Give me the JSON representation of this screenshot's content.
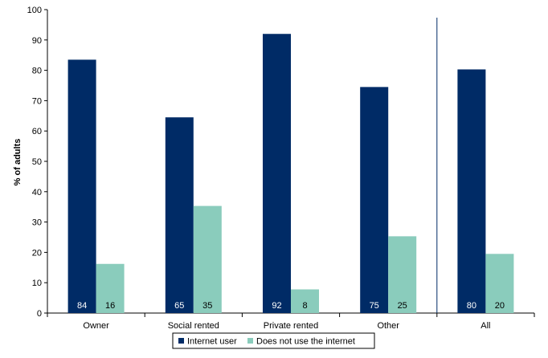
{
  "chart_data": {
    "type": "bar",
    "title": "",
    "xlabel": "",
    "ylabel": "% of adults",
    "ylim": [
      0,
      100
    ],
    "yticks": [
      0,
      10,
      20,
      30,
      40,
      50,
      60,
      70,
      80,
      90,
      100
    ],
    "categories": [
      "Owner",
      "Social rented",
      "Private rented",
      "Other",
      "All"
    ],
    "series": [
      {
        "name": "Internet user",
        "color": "#002B66",
        "label_color": "#ffffff",
        "values": [
          83.5,
          64.5,
          92,
          74.5,
          80.3
        ],
        "labels": [
          "84",
          "65",
          "92",
          "75",
          "80"
        ]
      },
      {
        "name": "Does not use the internet",
        "color": "#8ACCBC",
        "label_color": "#000000",
        "values": [
          16.2,
          35.3,
          7.8,
          25.3,
          19.5
        ],
        "labels": [
          "16",
          "35",
          "8",
          "25",
          "20"
        ]
      }
    ],
    "legend_position": "bottom",
    "grid": false,
    "separator_before_category": "All"
  }
}
